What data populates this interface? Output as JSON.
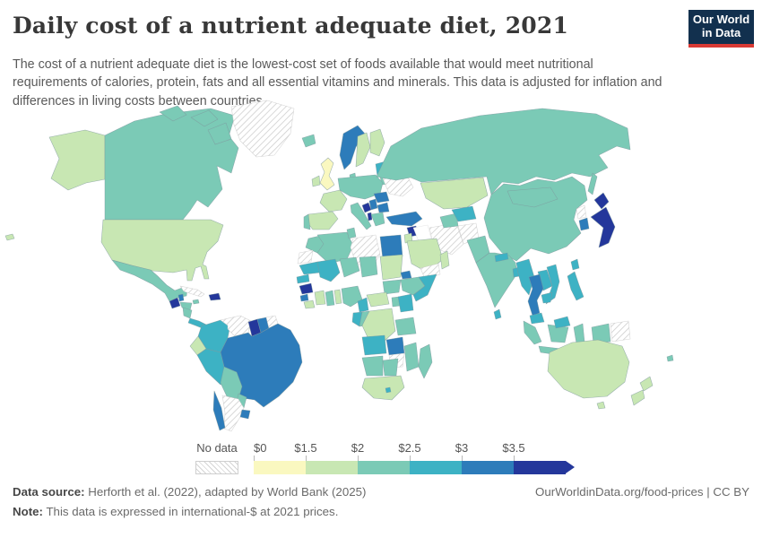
{
  "header": {
    "title": "Daily cost of a nutrient adequate diet, 2021",
    "subtitle": "The cost of a nutrient adequate diet is the lowest-cost set of foods available that would meet nutritional requirements of calories, protein, fats and all essential vitamins and minerals. This data is adjusted for inflation and differences in living costs between countries.",
    "logo": {
      "line1": "Our World",
      "line2": "in Data",
      "bg_color": "#12304e",
      "accent_color": "#d93a34"
    }
  },
  "legend": {
    "no_data_label": "No data",
    "ticks": [
      "$0",
      "$1.5",
      "$2",
      "$2.5",
      "$3",
      "$3.5"
    ]
  },
  "footer": {
    "source_label": "Data source:",
    "source_text": " Herforth et al. (2022), adapted by World Bank (2025)",
    "link_text": "OurWorldinData.org/food-prices | CC BY",
    "note_label": "Note:",
    "note_text": " This data is expressed in international-$ at 2021 prices."
  },
  "chart_data": {
    "type": "choropleth",
    "title": "Daily cost of a nutrient adequate diet, 2021",
    "unit": "international-$ per day at 2021 prices",
    "legend_ticks": [
      "$0",
      "$1.5",
      "$2",
      "$2.5",
      "$3",
      "$3.5"
    ],
    "bin_order": [
      "0-1.5",
      "1.5-2",
      "2-2.5",
      "2.5-3",
      "3-3.5",
      "3.5+"
    ],
    "colors": {
      "0-1.5": "#faf8c0",
      "1.5-2": "#c8e7b3",
      "2-2.5": "#7bcab6",
      "2.5-3": "#3db2c4",
      "3-3.5": "#2d7cba",
      "3.5+": "#24379b",
      "blank": "#ffffff"
    },
    "no_data": {
      "pattern_bg": "#ffffff",
      "pattern_line": "#cccccc"
    },
    "regions": {
      "united-states": "1.5-2",
      "canada": "2-2.5",
      "greenland": "no-data",
      "iceland": "2-2.5",
      "mexico": "2-2.5",
      "guatemala": "3.5+",
      "belize": "3-3.5",
      "honduras": "2-2.5",
      "nicaragua": "2-2.5",
      "costa-rica-panama": "2.5-3",
      "cuba": "no-data",
      "jamaica": "2-2.5",
      "hispaniola": "3.5+",
      "colombia": "2.5-3",
      "venezuela": "no-data",
      "guyana": "3.5+",
      "suriname": "3-3.5",
      "french-guiana": "no-data",
      "ecuador": "1.5-2",
      "peru": "2.5-3",
      "brazil": "3-3.5",
      "bolivia": "2-2.5",
      "paraguay": "2-2.5",
      "uruguay": "3-3.5",
      "argentina": "no-data",
      "chile": "3-3.5",
      "uk": "0-1.5",
      "ireland": "1.5-2",
      "norway": "3-3.5",
      "sweden": "1.5-2",
      "finland": "1.5-2",
      "denmark": "2-2.5",
      "baltics": "2.5-3",
      "belarus": "2-2.5",
      "central-europe": "2-2.5",
      "france": "1.5-2",
      "spain": "1.5-2",
      "portugal": "2-2.5",
      "italy": "2-2.5",
      "bosnia": "3.5+",
      "serbia": "3-3.5",
      "romania": "3-3.5",
      "bulgaria": "3-3.5",
      "greece": "2-2.5",
      "albania": "3.5+",
      "ukraine": "no-data",
      "turkey": "3-3.5",
      "syria": "3.5+",
      "jordan": "1.5-2",
      "iraq": "blank",
      "iran": "no-data",
      "afghanistan": "no-data",
      "turkmenistan": "2-2.5",
      "uzbekistan": "2.5-3",
      "kazakhstan": "1.5-2",
      "saudi-arabia": "1.5-2",
      "yemen": "no-data",
      "oman": "1.5-2",
      "morocco": "2-2.5",
      "western-sahara": "no-data",
      "algeria": "2-2.5",
      "tunisia": "2-2.5",
      "libya": "no-data",
      "egypt": "3-3.5",
      "mauritania": "2.5-3",
      "mali": "2.5-3",
      "niger": "2-2.5",
      "chad": "2-2.5",
      "sudan": "1.5-2",
      "eritrea": "3-3.5",
      "ethiopia": "2-2.5",
      "somalia": "2.5-3",
      "kenya": "2.5-3",
      "uganda": "2-2.5",
      "south-sudan": "2-2.5",
      "senegal": "2.5-3",
      "guinea": "3.5+",
      "sierra-leone": "3-3.5",
      "liberia": "1.5-2",
      "cote-divoire": "1.5-2",
      "ghana": "2-2.5",
      "togo-benin": "1.5-2",
      "nigeria": "2-2.5",
      "cameroon": "2.5-3",
      "central-african-republic": "1.5-2",
      "gabon": "2.5-3",
      "congo": "2-2.5",
      "drc": "1.5-2",
      "tanzania": "2-2.5",
      "angola": "2.5-3",
      "zambia": "3-3.5",
      "zimbabwe": "no-data",
      "mozambique": "2-2.5",
      "namibia": "2-2.5",
      "botswana": "2-2.5",
      "south-africa": "1.5-2",
      "lesotho": "2.5-3",
      "madagascar": "2-2.5",
      "pakistan": "2-2.5",
      "india": "2-2.5",
      "nepal": "2.5-3",
      "bangladesh": "2.5-3",
      "sri-lanka": "2.5-3",
      "china": "2-2.5",
      "mongolia": "2-2.5",
      "russia": "2-2.5",
      "north-korea": "no-data",
      "south-korea": "3-3.5",
      "japan": "3.5+",
      "taiwan": "2.5-3",
      "myanmar": "2.5-3",
      "thailand": "3-3.5",
      "laos": "2.5-3",
      "vietnam": "2.5-3",
      "cambodia": "2.5-3",
      "malaysia": "2.5-3",
      "indonesia": "2-2.5",
      "papua-new-guinea": "no-data",
      "philippines": "2.5-3",
      "australia": "1.5-2",
      "new-zealand": "1.5-2",
      "fiji": "2-2.5"
    }
  }
}
